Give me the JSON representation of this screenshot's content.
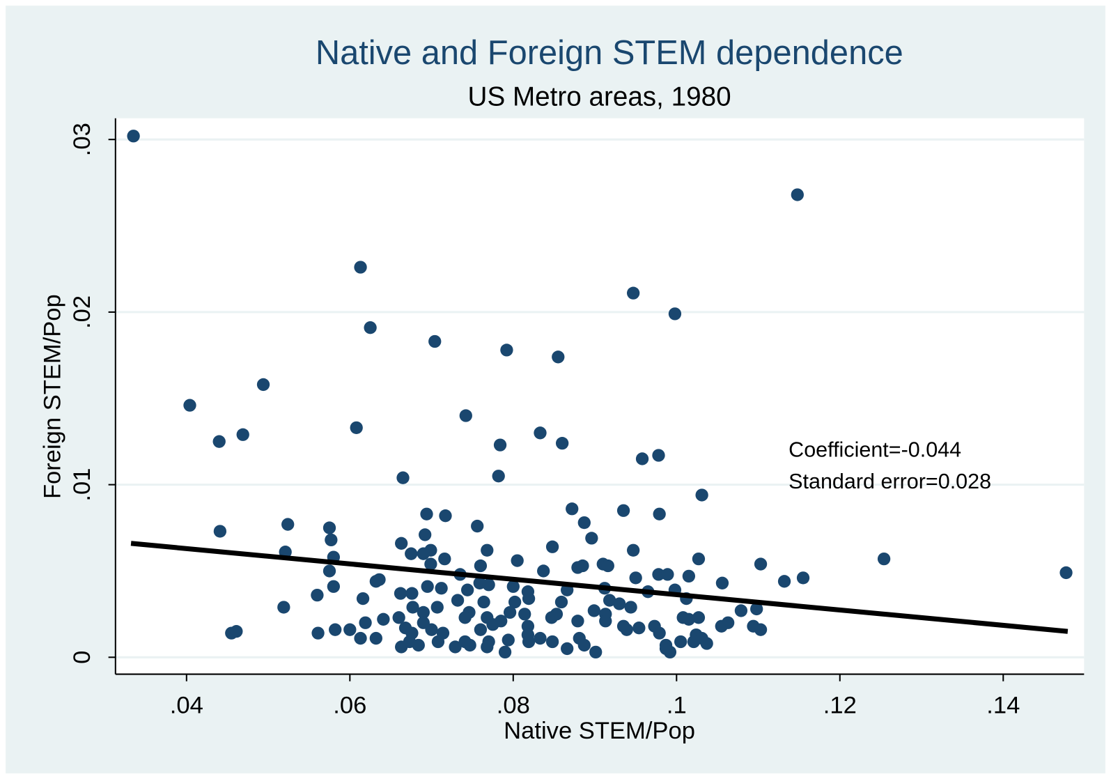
{
  "chart_data": {
    "type": "scatter",
    "title": "Native and Foreign STEM dependence",
    "subtitle": "US Metro areas, 1980",
    "x_label": "Native STEM/Pop",
    "y_label": "Foreign STEM/Pop",
    "annotations": [
      "Coefficient=-0.044",
      "Standard error=0.028"
    ],
    "color": "#1a476f",
    "line_color": "#000000",
    "grid": true,
    "xlim": [
      0.0313,
      0.1499
    ],
    "ylim": [
      -0.00098,
      0.03123
    ],
    "xticks": [
      {
        "value": 0.04,
        "label": ".04"
      },
      {
        "value": 0.06,
        "label": ".06"
      },
      {
        "value": 0.08,
        "label": ".08"
      },
      {
        "value": 0.1,
        "label": ".1"
      },
      {
        "value": 0.12,
        "label": ".12"
      },
      {
        "value": 0.14,
        "label": ".14"
      }
    ],
    "yticks": [
      0,
      {
        "value": 0.01,
        "label": ".01"
      },
      {
        "value": 0.02,
        "label": ".02"
      },
      {
        "value": 0.03,
        "label": ".03"
      }
    ],
    "fit_line": {
      "x": [
        0.0332,
        0.1479
      ],
      "y": [
        0.0066,
        0.0015
      ]
    },
    "x": [
      0.0335,
      0.1148,
      0.0613,
      0.0947,
      0.0998,
      0.0625,
      0.0704,
      0.0792,
      0.0855,
      0.0494,
      0.0404,
      0.0742,
      0.0608,
      0.0469,
      0.044,
      0.0833,
      0.0784,
      0.086,
      0.0958,
      0.0978,
      0.0665,
      0.0782,
      0.1031,
      0.0872,
      0.0935,
      0.0979,
      0.0694,
      0.0717,
      0.0887,
      0.0524,
      0.0756,
      0.0575,
      0.0441,
      0.0692,
      0.0577,
      0.0896,
      0.0663,
      0.0848,
      0.0768,
      0.0947,
      0.0521,
      0.0699,
      0.0675,
      0.069,
      0.058,
      0.1254,
      0.0716,
      0.1027,
      0.0805,
      0.1477,
      0.1103,
      0.091,
      0.0916,
      0.0885,
      0.0879,
      0.076,
      0.0699,
      0.0575,
      0.0837,
      0.0735,
      0.0978,
      0.0989,
      0.1015,
      0.095,
      0.1155,
      0.1132,
      0.1056,
      0.0632,
      0.0636,
      0.0759,
      0.077,
      0.058,
      0.0695,
      0.0712,
      0.08,
      0.0912,
      0.0744,
      0.0998,
      0.0965,
      0.0818,
      0.0866,
      0.0662,
      0.0676,
      0.056,
      0.0819,
      0.0616,
      0.1012,
      0.0918,
      0.0732,
      0.0802,
      0.0764,
      0.093,
      0.0859,
      0.0944,
      0.0519,
      0.0707,
      0.0677,
      0.1079,
      0.1098,
      0.0899,
      0.0746,
      0.069,
      0.0796,
      0.0814,
      0.0853,
      0.0913,
      0.1008,
      0.1027,
      0.1015,
      0.0847,
      0.0741,
      0.0641,
      0.0768,
      0.066,
      0.0785,
      0.0879,
      0.0913,
      0.0619,
      0.069,
      0.1063,
      0.0775,
      0.0935,
      0.1055,
      0.0818,
      0.0973,
      0.1094,
      0.1103,
      0.0668,
      0.07,
      0.076,
      0.0582,
      0.0939,
      0.0954,
      0.06,
      0.0561,
      0.0455,
      0.0461,
      0.0676,
      0.0714,
      0.0979,
      0.0818,
      0.1024,
      0.0833,
      0.0632,
      0.1031,
      0.0613,
      0.0881,
      0.0794,
      0.0673,
      0.0708,
      0.0741,
      0.0819,
      0.1005,
      0.0848,
      0.1021,
      0.1037,
      0.077,
      0.0747,
      0.0887,
      0.0684,
      0.0729,
      0.0663,
      0.0987,
      0.0866,
      0.0768,
      0.0987,
      0.0992,
      0.0901,
      0.079
    ],
    "y": [
      0.0302,
      0.0268,
      0.0226,
      0.0211,
      0.0199,
      0.0191,
      0.0183,
      0.0178,
      0.0174,
      0.0158,
      0.0146,
      0.014,
      0.0133,
      0.0129,
      0.0125,
      0.013,
      0.0123,
      0.0124,
      0.0115,
      0.0117,
      0.0104,
      0.0105,
      0.0094,
      0.0086,
      0.0085,
      0.0083,
      0.0083,
      0.0082,
      0.0078,
      0.0077,
      0.0076,
      0.0075,
      0.0073,
      0.0071,
      0.0068,
      0.0069,
      0.0066,
      0.0064,
      0.0062,
      0.0062,
      0.0061,
      0.0062,
      0.006,
      0.006,
      0.0058,
      0.0057,
      0.0057,
      0.0057,
      0.0056,
      0.0049,
      0.0054,
      0.0054,
      0.0053,
      0.0053,
      0.0052,
      0.0053,
      0.0054,
      0.005,
      0.005,
      0.0048,
      0.0048,
      0.0048,
      0.0047,
      0.0046,
      0.0046,
      0.0044,
      0.0043,
      0.0044,
      0.0045,
      0.0043,
      0.0042,
      0.0041,
      0.0041,
      0.004,
      0.0041,
      0.004,
      0.0039,
      0.0039,
      0.0038,
      0.0038,
      0.0039,
      0.0037,
      0.0037,
      0.0036,
      0.0034,
      0.0034,
      0.0034,
      0.0033,
      0.0033,
      0.0032,
      0.0032,
      0.0031,
      0.0032,
      0.0029,
      0.0029,
      0.0029,
      0.0029,
      0.0027,
      0.0028,
      0.0027,
      0.0026,
      0.0026,
      0.0026,
      0.0025,
      0.0025,
      0.0025,
      0.0023,
      0.0023,
      0.0022,
      0.0023,
      0.0023,
      0.0022,
      0.0023,
      0.0023,
      0.0021,
      0.0021,
      0.0021,
      0.002,
      0.002,
      0.002,
      0.0019,
      0.0018,
      0.0018,
      0.0018,
      0.0018,
      0.0018,
      0.0016,
      0.0017,
      0.0016,
      0.0016,
      0.0016,
      0.0016,
      0.0017,
      0.0016,
      0.0014,
      0.0014,
      0.0015,
      0.0014,
      0.0014,
      0.0014,
      0.0013,
      0.0013,
      0.0011,
      0.0011,
      0.0011,
      0.0011,
      0.0011,
      0.001,
      0.0009,
      0.0009,
      0.0009,
      0.0009,
      0.0009,
      0.0009,
      0.0009,
      0.0008,
      0.0009,
      0.0007,
      0.0007,
      0.0007,
      0.0006,
      0.0006,
      0.0007,
      0.0005,
      0.0006,
      0.0005,
      0.0003,
      0.0003,
      0.0003
    ]
  }
}
